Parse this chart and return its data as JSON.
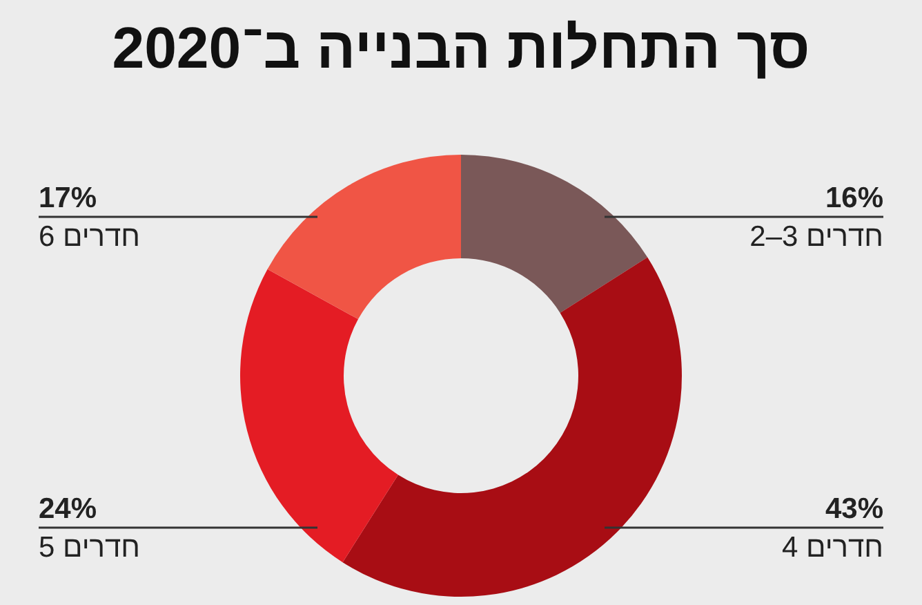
{
  "chart_data": {
    "type": "donut",
    "title": "סך התחלות הבנייה ב־2020",
    "categories": [
      "2–3 חדרים",
      "4 חדרים",
      "5 חדרים",
      "6 חדרים"
    ],
    "values": [
      16,
      43,
      24,
      17
    ],
    "value_labels": [
      "16%",
      "43%",
      "24%",
      "17%"
    ],
    "colors": [
      "#7a5858",
      "#a80d14",
      "#e41c24",
      "#f05545"
    ]
  }
}
